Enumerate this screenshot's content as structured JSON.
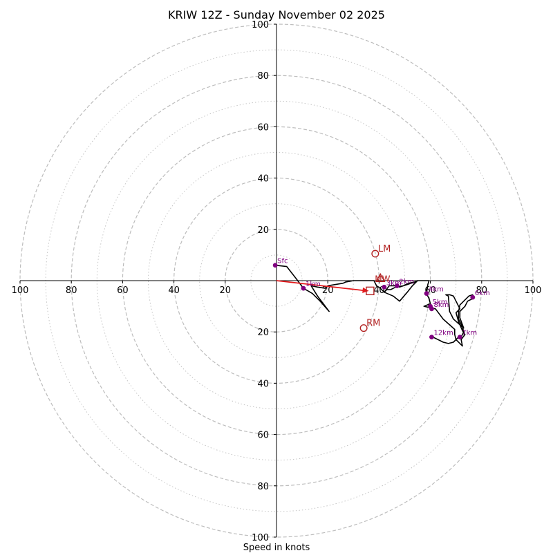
{
  "chart_data": {
    "type": "hodograph",
    "title": "KRIW 12Z - Sunday November 02 2025",
    "xlabel": "Speed in knots",
    "axis_range": [
      -100,
      100
    ],
    "rings_major": [
      20,
      40,
      60,
      80,
      100
    ],
    "rings_minor": [
      10,
      30,
      50,
      70,
      90
    ],
    "tick_values": [
      20,
      40,
      60,
      80,
      100
    ],
    "tick_labels": [
      "20",
      "40",
      "60",
      "80",
      "100"
    ],
    "hodo_trace": [
      [
        -0.5,
        6
      ],
      [
        4,
        5.5
      ],
      [
        7.5,
        1
      ],
      [
        10.5,
        -3
      ],
      [
        14,
        -5
      ],
      [
        17,
        -8
      ],
      [
        20.5,
        -12
      ],
      [
        16,
        -6
      ],
      [
        13.5,
        -2
      ],
      [
        16,
        -2.5
      ],
      [
        19,
        -3
      ],
      [
        20,
        -2
      ],
      [
        26,
        -1
      ],
      [
        27,
        -0.5
      ],
      [
        30,
        0
      ],
      [
        33,
        0
      ],
      [
        37,
        0
      ],
      [
        38,
        0
      ],
      [
        39,
        -2
      ],
      [
        40.5,
        -3
      ],
      [
        42,
        -4.5
      ],
      [
        44,
        -2
      ],
      [
        46,
        -2
      ],
      [
        47,
        -2
      ],
      [
        48,
        -2.5
      ],
      [
        51,
        -1.5
      ],
      [
        54,
        -0.5
      ],
      [
        55,
        0
      ],
      [
        53,
        -2
      ],
      [
        51,
        -4.5
      ],
      [
        48,
        -8
      ],
      [
        45.5,
        -6
      ],
      [
        42,
        -4.5
      ],
      [
        43,
        -3.5
      ],
      [
        44.5,
        -3.5
      ],
      [
        46.5,
        -2.5
      ],
      [
        49.5,
        -2
      ],
      [
        51.5,
        -1
      ],
      [
        54,
        -0.5
      ],
      [
        55,
        0
      ],
      [
        57,
        0
      ],
      [
        59.5,
        0
      ],
      [
        59,
        -1.5
      ],
      [
        58.5,
        -5
      ],
      [
        59.5,
        -7
      ],
      [
        60,
        -9
      ],
      [
        57.5,
        -10
      ],
      [
        62,
        -11
      ],
      [
        65,
        -15
      ],
      [
        69.5,
        -19
      ],
      [
        69.5,
        -21
      ],
      [
        70,
        -23
      ],
      [
        72.5,
        -25.5
      ],
      [
        72,
        -23
      ],
      [
        73.5,
        -21
      ],
      [
        72.5,
        -19.5
      ],
      [
        71,
        -16
      ],
      [
        70,
        -12.5
      ],
      [
        71.5,
        -11
      ],
      [
        69,
        -6
      ],
      [
        67.5,
        -5.5
      ],
      [
        66,
        -5.5
      ],
      [
        67,
        -6
      ],
      [
        67.5,
        -12
      ],
      [
        69,
        -15
      ],
      [
        73,
        -18.5
      ],
      [
        71.5,
        -14.5
      ],
      [
        71.5,
        -12
      ],
      [
        73.5,
        -10
      ],
      [
        74.5,
        -8
      ],
      [
        76.5,
        -7
      ],
      [
        76.5,
        -5.5
      ],
      [
        75,
        -6
      ],
      [
        73.5,
        -7.5
      ],
      [
        71.5,
        -9.5
      ],
      [
        71,
        -12
      ],
      [
        71,
        -15
      ],
      [
        72.5,
        -18
      ],
      [
        73,
        -20
      ],
      [
        72,
        -22
      ],
      [
        71,
        -22
      ],
      [
        69,
        -24
      ],
      [
        67,
        -24.5
      ],
      [
        65,
        -24
      ],
      [
        63,
        -23
      ],
      [
        62,
        -22.5
      ],
      [
        61,
        -22
      ],
      [
        60.5,
        -22
      ]
    ],
    "height_markers": [
      {
        "label": "Sfc",
        "u": -0.5,
        "v": 6
      },
      {
        "label": "1km",
        "u": 10.5,
        "v": -3
      },
      {
        "label": "2km",
        "u": 47,
        "v": -2
      },
      {
        "label": "3km",
        "u": 42,
        "v": -2.5
      },
      {
        "label": "4km",
        "u": 58.5,
        "v": -5
      },
      {
        "label": "5km",
        "u": 60,
        "v": -10
      },
      {
        "label": "6km",
        "u": 76.5,
        "v": -6.5
      },
      {
        "label": "7km",
        "u": 71.5,
        "v": -22
      },
      {
        "label": "12km",
        "u": 60.5,
        "v": -22
      },
      {
        "label": "8km",
        "u": 60.5,
        "v": -11
      }
    ],
    "storm_motion": [
      {
        "label": "LM",
        "u": 38.5,
        "v": 10.5
      },
      {
        "label": "RM",
        "u": 34,
        "v": -18.5
      }
    ],
    "mean_wind": {
      "label": "MW",
      "u": 40.5,
      "v": 1
    },
    "shear_vector": {
      "from": [
        0,
        0
      ],
      "to": [
        36,
        -4
      ]
    },
    "box_marker": {
      "u": 36.5,
      "v": -4
    }
  }
}
